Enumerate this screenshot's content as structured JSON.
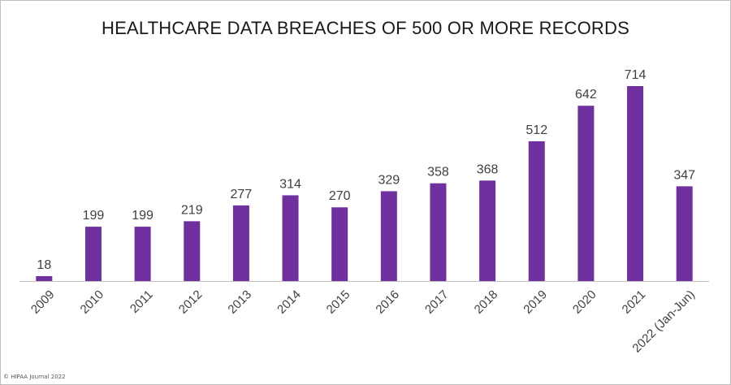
{
  "chart_data": {
    "type": "bar",
    "title": "HEALTHCARE DATA BREACHES OF 500 OR MORE RECORDS",
    "xlabel": "",
    "ylabel": "",
    "categories": [
      "2009",
      "2010",
      "2011",
      "2012",
      "2013",
      "2014",
      "2015",
      "2016",
      "2017",
      "2018",
      "2019",
      "2020",
      "2021",
      "2022 (Jan-Jun)"
    ],
    "values": [
      18,
      199,
      199,
      219,
      277,
      314,
      270,
      329,
      358,
      368,
      512,
      642,
      714,
      347
    ],
    "ylim": [
      0,
      714
    ],
    "grid": false,
    "legend": "none",
    "bar_color": "#7030a0",
    "axis_color": "#bfbfbf",
    "label_color": "#404040"
  },
  "footer": {
    "copyright": "© HIPAA Journal 2022"
  }
}
